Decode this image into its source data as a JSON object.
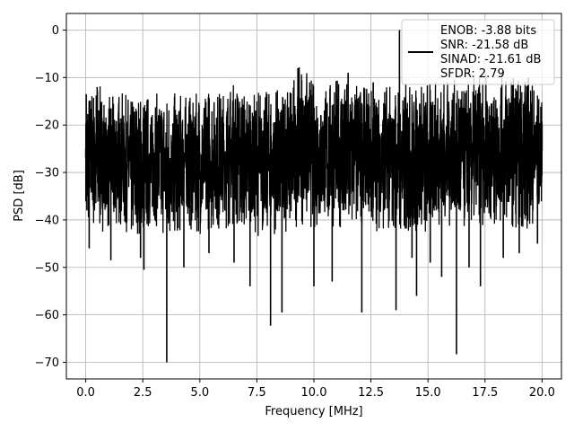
{
  "chart_data": {
    "type": "line",
    "title": "",
    "xlabel": "Frequency [MHz]",
    "ylabel": "PSD [dB]",
    "xlim": [
      -0.85,
      20.85
    ],
    "ylim": [
      -73.5,
      3.5
    ],
    "x_ticks": [
      0.0,
      2.5,
      5.0,
      7.5,
      10.0,
      12.5,
      15.0,
      17.5,
      20.0
    ],
    "x_tick_labels": [
      "0.0",
      "2.5",
      "5.0",
      "7.5",
      "10.0",
      "12.5",
      "15.0",
      "17.5",
      "20.0"
    ],
    "y_ticks": [
      0,
      -10,
      -20,
      -30,
      -40,
      -50,
      -60,
      -70
    ],
    "y_tick_labels": [
      "0",
      "−10",
      "−20",
      "−30",
      "−40",
      "−50",
      "−60",
      "−70"
    ],
    "grid": true,
    "legend_position": "top-right",
    "line_color": "#000000",
    "series": [
      {
        "legend_lines": [
          "ENOB: -3.88 bits",
          "SNR: -21.58 dB",
          "SINAD: -21.61 dB",
          "SFDR: 2.79"
        ],
        "points": [
          {
            "x": 0.0,
            "y": -25
          },
          {
            "x": 0.02,
            "y": -13.5
          },
          {
            "x": 0.05,
            "y": -38
          },
          {
            "x": 0.15,
            "y": -46
          },
          {
            "x": 0.5,
            "y": -12
          },
          {
            "x": 1.1,
            "y": -48.5
          },
          {
            "x": 2.4,
            "y": -48
          },
          {
            "x": 2.55,
            "y": -50.5
          },
          {
            "x": 3.55,
            "y": -70
          },
          {
            "x": 4.3,
            "y": -50
          },
          {
            "x": 5.4,
            "y": -47
          },
          {
            "x": 6.5,
            "y": -49
          },
          {
            "x": 7.2,
            "y": -54
          },
          {
            "x": 8.1,
            "y": -62.3
          },
          {
            "x": 8.6,
            "y": -59.5
          },
          {
            "x": 9.3,
            "y": -8
          },
          {
            "x": 10.0,
            "y": -54
          },
          {
            "x": 10.8,
            "y": -53
          },
          {
            "x": 11.5,
            "y": -9
          },
          {
            "x": 12.1,
            "y": -59.5
          },
          {
            "x": 12.6,
            "y": -11
          },
          {
            "x": 13.6,
            "y": -59
          },
          {
            "x": 13.75,
            "y": 0
          },
          {
            "x": 14.3,
            "y": -48
          },
          {
            "x": 14.5,
            "y": -56
          },
          {
            "x": 15.1,
            "y": -49
          },
          {
            "x": 15.6,
            "y": -52
          },
          {
            "x": 16.25,
            "y": -68.3
          },
          {
            "x": 16.8,
            "y": -50
          },
          {
            "x": 17.3,
            "y": -54
          },
          {
            "x": 18.3,
            "y": -48
          },
          {
            "x": 19.0,
            "y": -47
          },
          {
            "x": 19.4,
            "y": -10
          },
          {
            "x": 19.8,
            "y": -45
          },
          {
            "x": 20.0,
            "y": -20
          }
        ],
        "noise_band_upper": [
          {
            "x": 0.0,
            "y": -14
          },
          {
            "x": 0.5,
            "y": -11
          },
          {
            "x": 1.0,
            "y": -14
          },
          {
            "x": 1.5,
            "y": -13
          },
          {
            "x": 2.0,
            "y": -14
          },
          {
            "x": 2.5,
            "y": -14
          },
          {
            "x": 3.0,
            "y": -13
          },
          {
            "x": 3.5,
            "y": -14
          },
          {
            "x": 4.0,
            "y": -13
          },
          {
            "x": 4.5,
            "y": -14
          },
          {
            "x": 5.0,
            "y": -13
          },
          {
            "x": 5.5,
            "y": -12
          },
          {
            "x": 6.0,
            "y": -13
          },
          {
            "x": 6.5,
            "y": -11
          },
          {
            "x": 7.0,
            "y": -13
          },
          {
            "x": 7.5,
            "y": -12
          },
          {
            "x": 8.0,
            "y": -13
          },
          {
            "x": 8.5,
            "y": -12
          },
          {
            "x": 9.0,
            "y": -10
          },
          {
            "x": 9.5,
            "y": -7
          },
          {
            "x": 10.0,
            "y": -11
          },
          {
            "x": 10.5,
            "y": -12
          },
          {
            "x": 11.0,
            "y": -10
          },
          {
            "x": 11.5,
            "y": -9
          },
          {
            "x": 12.0,
            "y": -12
          },
          {
            "x": 12.5,
            "y": -12
          },
          {
            "x": 13.0,
            "y": -11
          },
          {
            "x": 13.5,
            "y": -12
          },
          {
            "x": 14.0,
            "y": -11
          },
          {
            "x": 14.5,
            "y": -12
          },
          {
            "x": 15.0,
            "y": -10
          },
          {
            "x": 15.5,
            "y": -11
          },
          {
            "x": 16.0,
            "y": -10
          },
          {
            "x": 16.5,
            "y": -11
          },
          {
            "x": 17.0,
            "y": -10
          },
          {
            "x": 17.5,
            "y": -9
          },
          {
            "x": 18.0,
            "y": -9
          },
          {
            "x": 18.5,
            "y": -9
          },
          {
            "x": 19.0,
            "y": -10
          },
          {
            "x": 19.5,
            "y": -10
          },
          {
            "x": 20.0,
            "y": -15
          }
        ],
        "noise_band_lower": [
          {
            "x": 0.0,
            "y": -40
          },
          {
            "x": 0.5,
            "y": -43
          },
          {
            "x": 1.0,
            "y": -42
          },
          {
            "x": 1.5,
            "y": -41
          },
          {
            "x": 2.0,
            "y": -44
          },
          {
            "x": 2.5,
            "y": -43
          },
          {
            "x": 3.0,
            "y": -41
          },
          {
            "x": 3.5,
            "y": -44
          },
          {
            "x": 4.0,
            "y": -43
          },
          {
            "x": 4.5,
            "y": -42
          },
          {
            "x": 5.0,
            "y": -43
          },
          {
            "x": 5.5,
            "y": -42
          },
          {
            "x": 6.0,
            "y": -43
          },
          {
            "x": 6.5,
            "y": -41
          },
          {
            "x": 7.0,
            "y": -42
          },
          {
            "x": 7.5,
            "y": -44
          },
          {
            "x": 8.0,
            "y": -42
          },
          {
            "x": 8.5,
            "y": -44
          },
          {
            "x": 9.0,
            "y": -42
          },
          {
            "x": 9.5,
            "y": -41
          },
          {
            "x": 10.0,
            "y": -42
          },
          {
            "x": 10.5,
            "y": -41
          },
          {
            "x": 11.0,
            "y": -42
          },
          {
            "x": 11.5,
            "y": -44
          },
          {
            "x": 12.0,
            "y": -41
          },
          {
            "x": 12.5,
            "y": -42
          },
          {
            "x": 13.0,
            "y": -43
          },
          {
            "x": 13.5,
            "y": -42
          },
          {
            "x": 14.0,
            "y": -44
          },
          {
            "x": 14.5,
            "y": -43
          },
          {
            "x": 15.0,
            "y": -44
          },
          {
            "x": 15.5,
            "y": -41
          },
          {
            "x": 16.0,
            "y": -42
          },
          {
            "x": 16.5,
            "y": -43
          },
          {
            "x": 17.0,
            "y": -42
          },
          {
            "x": 17.5,
            "y": -41
          },
          {
            "x": 18.0,
            "y": -42
          },
          {
            "x": 18.5,
            "y": -41
          },
          {
            "x": 19.0,
            "y": -42
          },
          {
            "x": 19.5,
            "y": -42
          },
          {
            "x": 20.0,
            "y": -36
          }
        ]
      }
    ]
  }
}
